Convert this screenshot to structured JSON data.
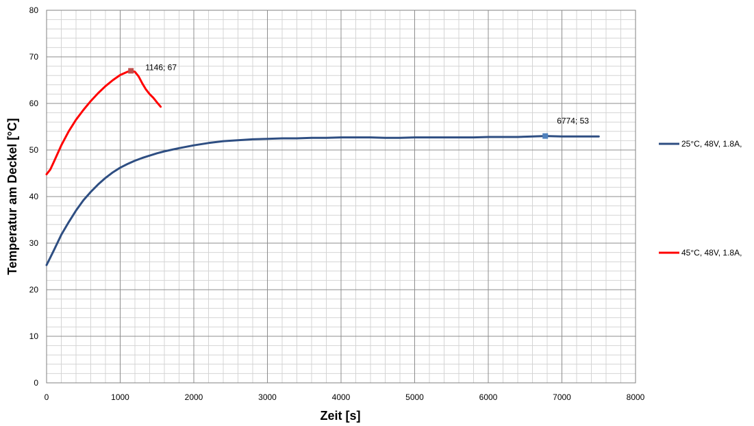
{
  "chart_data": {
    "type": "line",
    "xlabel": "Zeit [s]",
    "ylabel": "Temperatur am Deckel [°C]",
    "xlim": [
      0,
      8000
    ],
    "ylim": [
      0,
      80
    ],
    "x_ticks": [
      0,
      1000,
      2000,
      3000,
      4000,
      5000,
      6000,
      7000,
      8000
    ],
    "y_ticks": [
      0,
      10,
      20,
      30,
      40,
      50,
      60,
      70,
      80
    ],
    "grid": true,
    "legend_position": "right",
    "series": [
      {
        "name": "25°C, 48V, 1.8A,",
        "color": "#2e4e82",
        "x": [
          0,
          100,
          200,
          300,
          400,
          500,
          600,
          700,
          800,
          900,
          1000,
          1100,
          1200,
          1300,
          1400,
          1500,
          1600,
          1800,
          2000,
          2200,
          2400,
          2600,
          2800,
          3000,
          3200,
          3400,
          3600,
          3800,
          4000,
          4200,
          4400,
          4600,
          4800,
          5000,
          5200,
          5400,
          5600,
          5800,
          6000,
          6200,
          6400,
          6600,
          6774,
          7000,
          7200,
          7500
        ],
        "y": [
          25.3,
          28.5,
          31.8,
          34.5,
          37.0,
          39.2,
          41.0,
          42.6,
          44.0,
          45.2,
          46.2,
          47.0,
          47.7,
          48.3,
          48.8,
          49.3,
          49.7,
          50.4,
          51.0,
          51.5,
          51.9,
          52.1,
          52.3,
          52.4,
          52.5,
          52.5,
          52.6,
          52.6,
          52.7,
          52.7,
          52.7,
          52.6,
          52.6,
          52.7,
          52.7,
          52.7,
          52.7,
          52.7,
          52.8,
          52.8,
          52.8,
          52.9,
          53.0,
          52.9,
          52.9,
          52.9
        ]
      },
      {
        "name": "45°C, 48V, 1.8A,",
        "color": "#ff0000",
        "x": [
          0,
          50,
          100,
          200,
          300,
          400,
          500,
          600,
          700,
          800,
          900,
          1000,
          1100,
          1146,
          1200,
          1250,
          1300,
          1350,
          1400,
          1450,
          1500,
          1550
        ],
        "y": [
          44.8,
          45.8,
          47.5,
          51.0,
          54.0,
          56.5,
          58.6,
          60.5,
          62.2,
          63.7,
          65.0,
          66.1,
          66.8,
          67.0,
          66.8,
          65.8,
          64.3,
          63.0,
          62.0,
          61.2,
          60.2,
          59.3
        ]
      }
    ],
    "annotations": [
      {
        "series": 0,
        "x": 6774,
        "y": 53,
        "label": "6774; 53"
      },
      {
        "series": 1,
        "x": 1146,
        "y": 67,
        "label": "1146; 67"
      }
    ]
  }
}
